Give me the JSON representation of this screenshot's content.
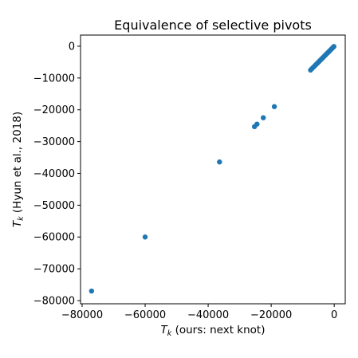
{
  "chart_data": {
    "type": "scatter",
    "title": "Equivalence of selective pivots",
    "xlabel_var": "T",
    "xlabel_sub": "k",
    "xlabel_rest": " (ours: next knot)",
    "ylabel_var": "T",
    "ylabel_sub": "k",
    "ylabel_rest": " (Hyun et al., 2018)",
    "xlim": [
      -80500,
      3500
    ],
    "ylim": [
      -81000,
      3500
    ],
    "xticks": [
      -80000,
      -60000,
      -40000,
      -20000,
      0
    ],
    "yticks": [
      -80000,
      -70000,
      -60000,
      -50000,
      -40000,
      -30000,
      -20000,
      -10000,
      0
    ],
    "xtick_labels": [
      "−80000",
      "−60000",
      "−40000",
      "−20000",
      "0"
    ],
    "ytick_labels": [
      "−80000",
      "−70000",
      "−60000",
      "−50000",
      "−40000",
      "−30000",
      "−20000",
      "−10000",
      "0"
    ],
    "marker_color": "#1f77b4",
    "grid": false,
    "points": [
      {
        "x": -77000,
        "y": -77000
      },
      {
        "x": -60000,
        "y": -60000
      },
      {
        "x": -36400,
        "y": -36400
      },
      {
        "x": -25300,
        "y": -25300
      },
      {
        "x": -24500,
        "y": -24500
      },
      {
        "x": -22500,
        "y": -22500
      },
      {
        "x": -19000,
        "y": -19000
      },
      {
        "x": -7500,
        "y": -7500
      },
      {
        "x": -7000,
        "y": -7000
      },
      {
        "x": -6500,
        "y": -6500
      },
      {
        "x": -6000,
        "y": -6000
      },
      {
        "x": -5600,
        "y": -5600
      },
      {
        "x": -5200,
        "y": -5200
      },
      {
        "x": -4800,
        "y": -4800
      },
      {
        "x": -4400,
        "y": -4400
      },
      {
        "x": -4000,
        "y": -4000
      },
      {
        "x": -3600,
        "y": -3600
      },
      {
        "x": -3200,
        "y": -3200
      },
      {
        "x": -2800,
        "y": -2800
      },
      {
        "x": -2400,
        "y": -2400
      },
      {
        "x": -2000,
        "y": -2000
      },
      {
        "x": -1600,
        "y": -1600
      },
      {
        "x": -1200,
        "y": -1200
      },
      {
        "x": -800,
        "y": -800
      },
      {
        "x": -400,
        "y": -400
      },
      {
        "x": -100,
        "y": -100
      }
    ]
  }
}
